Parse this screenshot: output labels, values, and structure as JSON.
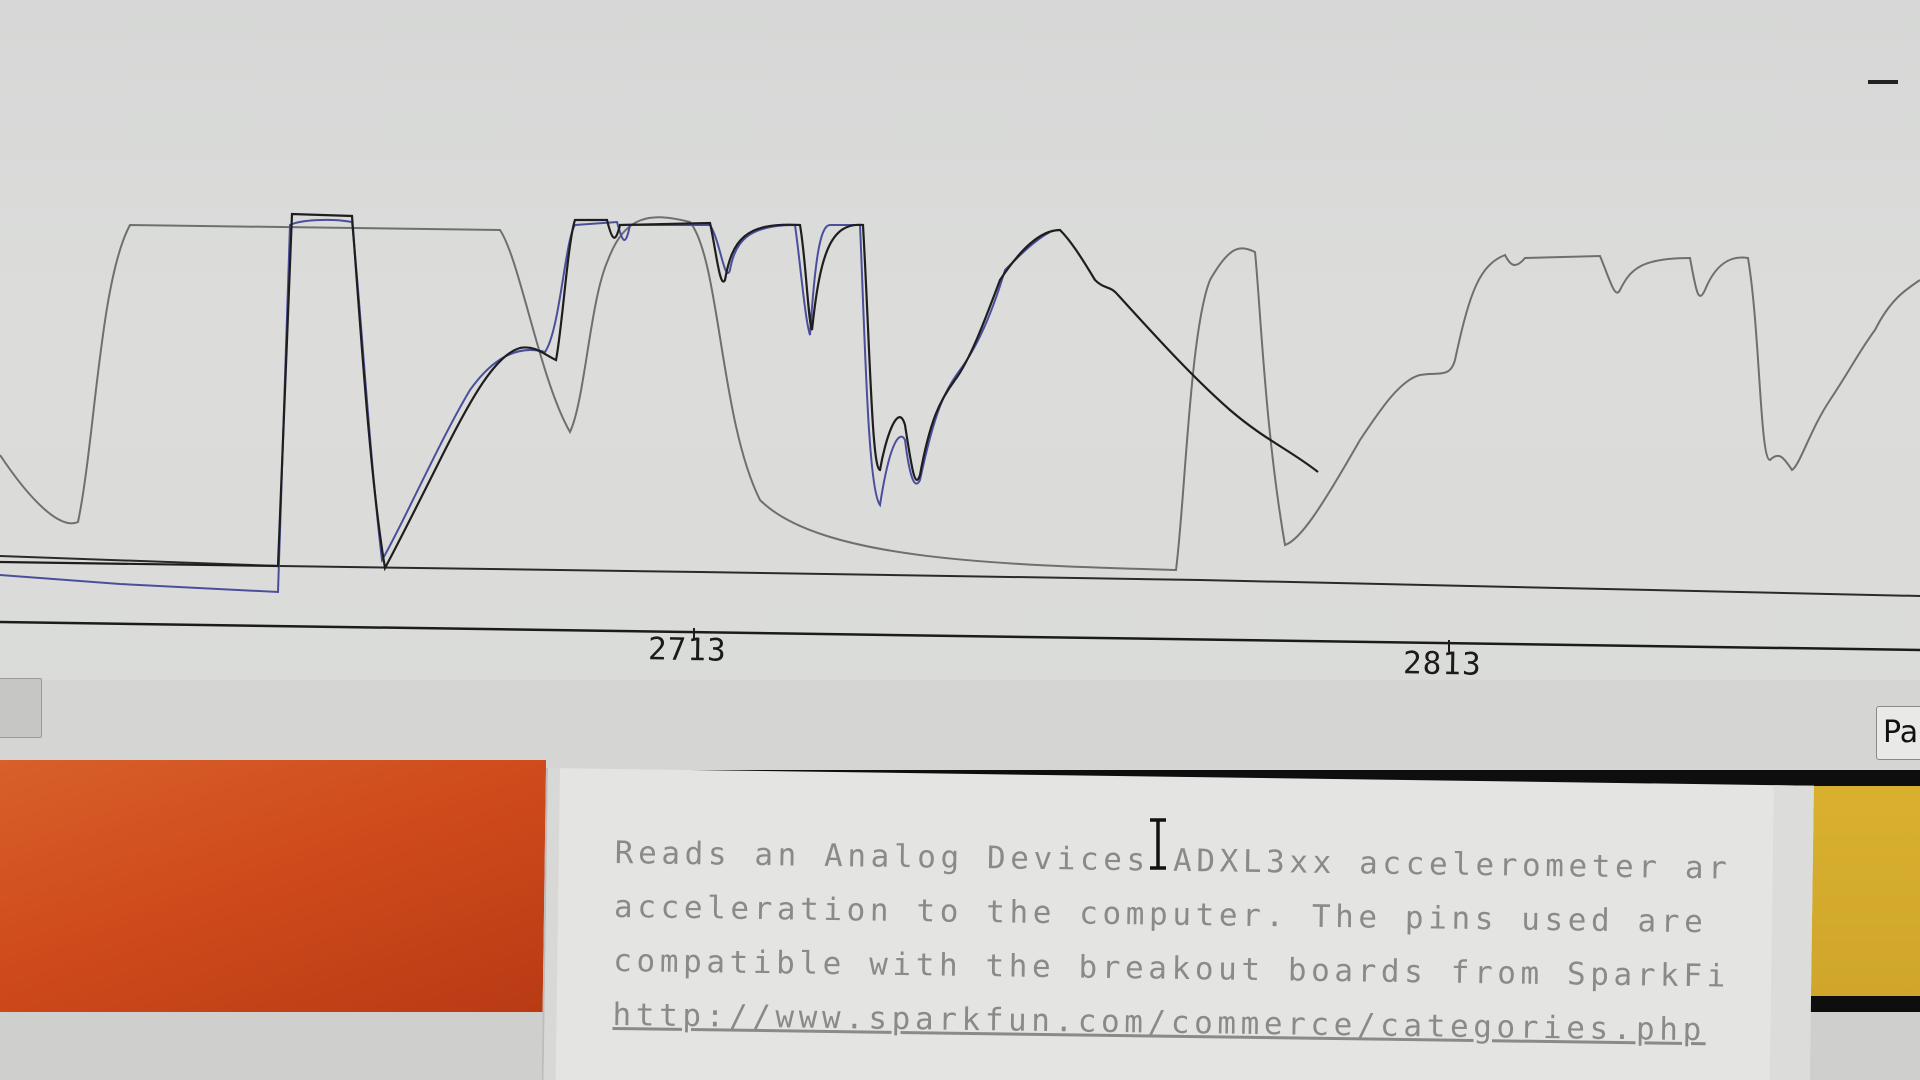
{
  "plotter": {
    "tick_labels": [
      "2713",
      "2813"
    ],
    "pause_label": "Pa",
    "colors": {
      "background": "#d9dad8",
      "trace_gray": "#6f6f6f",
      "trace_black": "#1e1e1e",
      "trace_blue": "#4a4f9c"
    }
  },
  "editor": {
    "comment_lines": [
      "Reads an Analog Devices ADXL3xx accelerometer ar",
      "acceleration to the computer. The pins used are",
      "compatible with the breakout boards from SparkFi",
      "http://www.sparkfun.com/commerce/categories.php"
    ]
  },
  "icons": {
    "window_control": "minimize-icon",
    "pointer": "text-cursor-icon"
  }
}
